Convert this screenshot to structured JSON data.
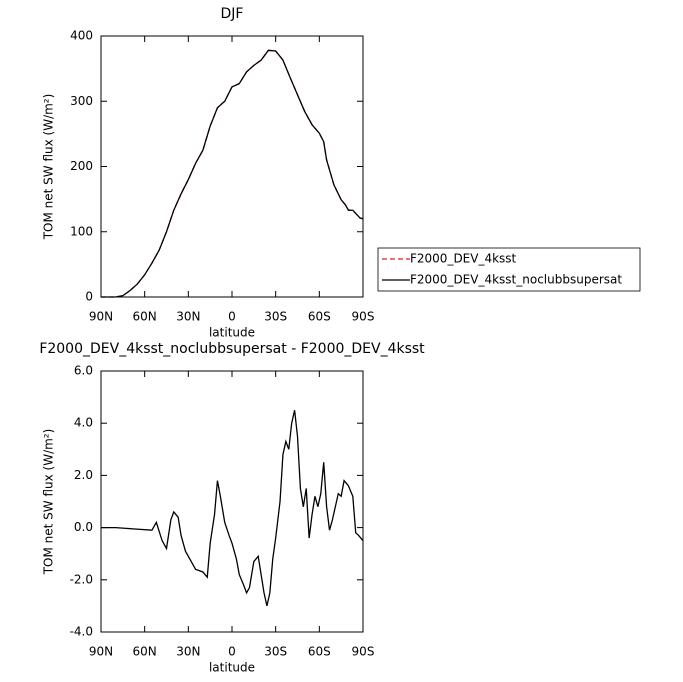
{
  "chart_data": [
    {
      "type": "line",
      "title": "DJF",
      "xlabel": "latitude",
      "ylabel": "TOM net SW flux (W/m²)",
      "x": [
        90,
        85,
        80,
        75,
        70,
        65,
        60,
        55,
        50,
        45,
        40,
        35,
        30,
        25,
        20,
        15,
        10,
        5,
        0,
        -5,
        -10,
        -15,
        -20,
        -25,
        -30,
        -35,
        -40,
        -45,
        -50,
        -55,
        -60,
        -63,
        -65,
        -70,
        -75,
        -78,
        -80,
        -83,
        -85,
        -88,
        -90
      ],
      "series": [
        {
          "name": "F2000_DEV_4ksst",
          "color": "#e41a1c",
          "linestyle": "dashed",
          "values": [
            0,
            0,
            0,
            2,
            10,
            20,
            34,
            52,
            72,
            100,
            133,
            158,
            180,
            205,
            225,
            262,
            290,
            300,
            322,
            327,
            345,
            355,
            363,
            378,
            377,
            363,
            336,
            310,
            284,
            264,
            251,
            238,
            210,
            172,
            149,
            141,
            133,
            133,
            128,
            121,
            120
          ]
        },
        {
          "name": "F2000_DEV_4ksst_noclubbsupersat",
          "color": "#000000",
          "linestyle": "solid",
          "values": [
            0,
            0,
            0,
            2,
            10,
            20,
            34,
            52,
            72,
            100,
            133,
            158,
            180,
            205,
            225,
            262,
            290,
            300,
            322,
            327,
            345,
            355,
            363,
            378,
            377,
            363,
            336,
            310,
            284,
            264,
            251,
            238,
            210,
            172,
            149,
            141,
            133,
            133,
            128,
            121,
            120
          ]
        }
      ],
      "xlim": [
        90,
        -90
      ],
      "xticks": [
        {
          "value": 90,
          "label": "90N"
        },
        {
          "value": 60,
          "label": "60N"
        },
        {
          "value": 30,
          "label": "30N"
        },
        0,
        {
          "value": -30,
          "label": "30S"
        },
        {
          "value": -60,
          "label": "60S"
        },
        {
          "value": -90,
          "label": "90S"
        }
      ],
      "ylim": [
        0,
        400
      ],
      "yticks": [
        0,
        100,
        200,
        300,
        400
      ],
      "legend": "right"
    },
    {
      "type": "line",
      "title": "F2000_DEV_4ksst_noclubbsupersat - F2000_DEV_4ksst",
      "xlabel": "latitude",
      "ylabel": "TOM net SW flux (W/m²)",
      "x": [
        90,
        80,
        68,
        55,
        52,
        48,
        45,
        42,
        40,
        37,
        35,
        32,
        28,
        25,
        20,
        17,
        15,
        12,
        10,
        8,
        5,
        2,
        0,
        -3,
        -5,
        -8,
        -10,
        -12,
        -15,
        -18,
        -20,
        -22,
        -24,
        -26,
        -28,
        -30,
        -33,
        -35,
        -37,
        -39,
        -41,
        -43,
        -45,
        -47,
        -49,
        -51,
        -53,
        -55,
        -57,
        -59,
        -61,
        -63,
        -65,
        -67,
        -69,
        -71,
        -73,
        -75,
        -77,
        -80,
        -83,
        -85,
        -87,
        -90
      ],
      "values": [
        0,
        0,
        -0.05,
        -0.1,
        0.2,
        -0.5,
        -0.8,
        0.3,
        0.6,
        0.4,
        -0.3,
        -0.9,
        -1.3,
        -1.6,
        -1.7,
        -1.9,
        -0.6,
        0.5,
        1.8,
        1.2,
        0.2,
        -0.3,
        -0.6,
        -1.2,
        -1.8,
        -2.2,
        -2.5,
        -2.3,
        -1.3,
        -1.1,
        -1.8,
        -2.5,
        -3.0,
        -2.5,
        -1.2,
        -0.4,
        1.0,
        2.8,
        3.3,
        3.0,
        4.0,
        4.5,
        3.5,
        1.5,
        0.8,
        1.5,
        -0.4,
        0.5,
        1.2,
        0.8,
        1.3,
        2.5,
        0.8,
        -0.1,
        0.3,
        0.8,
        1.3,
        1.2,
        1.8,
        1.6,
        1.2,
        -0.2,
        -0.3,
        -0.5
      ],
      "color": "#000000",
      "xlim": [
        90,
        -90
      ],
      "xticks": [
        {
          "value": 90,
          "label": "90N"
        },
        {
          "value": 60,
          "label": "60N"
        },
        {
          "value": 30,
          "label": "30N"
        },
        0,
        {
          "value": -30,
          "label": "30S"
        },
        {
          "value": -60,
          "label": "60S"
        },
        {
          "value": -90,
          "label": "90S"
        }
      ],
      "ylim": [
        -4,
        6
      ],
      "yticks": [
        {
          "value": -4,
          "label": "-4.0"
        },
        {
          "value": -2,
          "label": "-2.0"
        },
        {
          "value": 0,
          "label": "0.0"
        },
        {
          "value": 2,
          "label": "2.0"
        },
        {
          "value": 4,
          "label": "4.0"
        },
        {
          "value": 6,
          "label": "6.0"
        }
      ]
    }
  ]
}
